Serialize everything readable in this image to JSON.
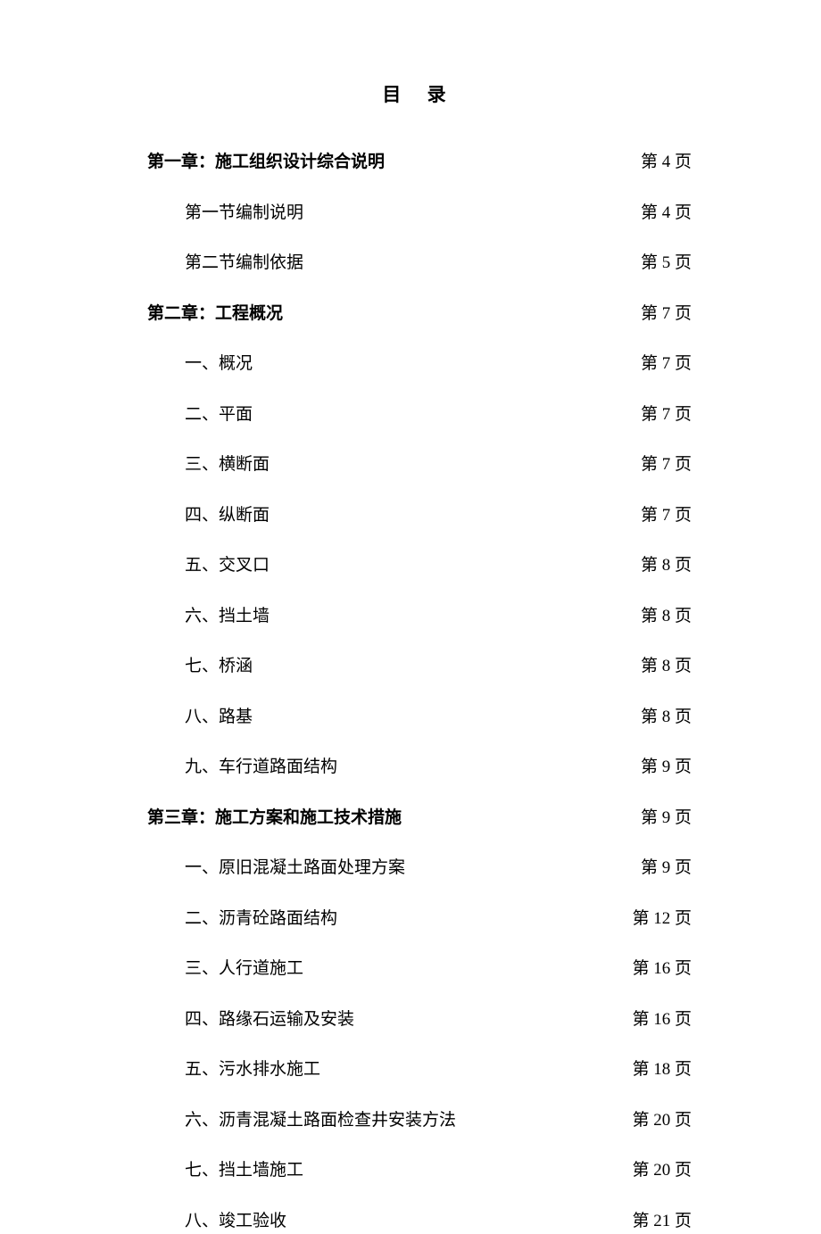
{
  "title": "目  录",
  "entries": [
    {
      "label": "第一章：施工组织设计综合说明",
      "page": "第 4 页",
      "level": "chapter"
    },
    {
      "label": "第一节编制说明",
      "page": "第 4 页",
      "level": "section"
    },
    {
      "label": "第二节编制依据",
      "page": "第 5 页",
      "level": "section"
    },
    {
      "label": "第二章：工程概况",
      "page": "第 7 页",
      "level": "chapter"
    },
    {
      "label": "一、概况",
      "page": "第 7 页",
      "level": "section"
    },
    {
      "label": "二、平面",
      "page": "第 7 页",
      "level": "section"
    },
    {
      "label": "三、横断面",
      "page": "第 7 页",
      "level": "section"
    },
    {
      "label": "四、纵断面",
      "page": "第 7 页",
      "level": "section"
    },
    {
      "label": "五、交叉口",
      "page": "第 8 页",
      "level": "section"
    },
    {
      "label": "六、挡土墙",
      "page": "第 8 页",
      "level": "section"
    },
    {
      "label": "七、桥涵",
      "page": "第 8 页",
      "level": "section"
    },
    {
      "label": "八、路基",
      "page": "第 8 页",
      "level": "section"
    },
    {
      "label": "九、车行道路面结构",
      "page": "第 9 页",
      "level": "section"
    },
    {
      "label": "第三章：施工方案和施工技术措施",
      "page": "第 9 页",
      "level": "chapter"
    },
    {
      "label": "一、原旧混凝土路面处理方案",
      "page": "第 9 页",
      "level": "section"
    },
    {
      "label": "二、沥青砼路面结构",
      "page": "第 12 页",
      "level": "section"
    },
    {
      "label": "三、人行道施工",
      "page": "第 16 页",
      "level": "section"
    },
    {
      "label": "四、路缘石运输及安装",
      "page": "第 16 页",
      "level": "section"
    },
    {
      "label": "五、污水排水施工",
      "page": "第 18 页",
      "level": "section"
    },
    {
      "label": "六、沥青混凝土路面检查井安装方法",
      "page": "第 20 页",
      "level": "section"
    },
    {
      "label": "七、挡土墙施工",
      "page": "第 20 页",
      "level": "section"
    },
    {
      "label": "八、竣工验收",
      "page": "第 21 页",
      "level": "section"
    }
  ]
}
